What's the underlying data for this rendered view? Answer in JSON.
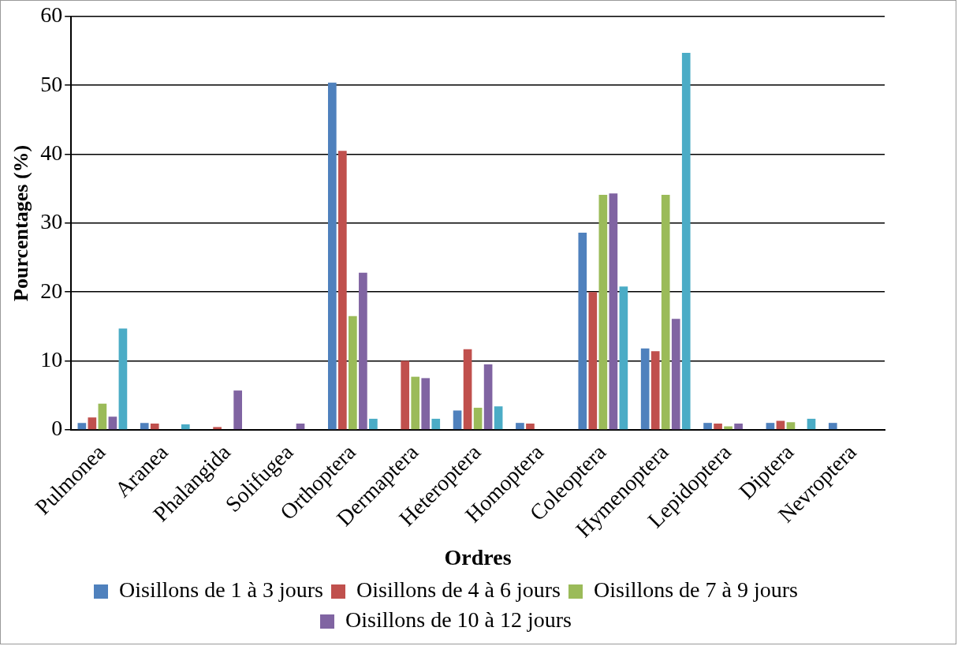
{
  "chart_data": {
    "type": "bar",
    "xlabel": "Ordres",
    "ylabel": "Pourcentages (%)",
    "categories": [
      "Pulmonea",
      "Aranea",
      "Phalangida",
      "Solifugea",
      "Orthoptera",
      "Dermaptera",
      "Heteroptera",
      "Homoptera",
      "Coleoptera",
      "Hymenoptera",
      "Lepidoptera",
      "Diptera",
      "Nevroptera"
    ],
    "series": [
      {
        "name": "Oisillons de 1 à 3 jours",
        "color": "#4f81bd",
        "values": [
          1.0,
          1.0,
          0,
          0,
          50.4,
          0,
          2.8,
          1.0,
          28.6,
          11.8,
          1.0,
          1.0,
          1.0
        ]
      },
      {
        "name": "Oisillons de 4 à 6 jours",
        "color": "#c0504d",
        "values": [
          1.8,
          0.9,
          0.4,
          0,
          40.5,
          10.0,
          11.7,
          0.9,
          20.0,
          11.4,
          0.9,
          1.3,
          0
        ]
      },
      {
        "name": "Oisillons de 7 à 9 jours",
        "color": "#9bbb59",
        "values": [
          3.8,
          0,
          0,
          0,
          16.5,
          7.7,
          3.2,
          0,
          34.1,
          34.1,
          0.5,
          1.1,
          0
        ]
      },
      {
        "name": "Oisillons de 10 à 12 jours",
        "color": "#8064a2",
        "values": [
          1.9,
          0,
          5.7,
          0.9,
          22.8,
          7.5,
          9.5,
          0,
          34.3,
          16.1,
          0.9,
          0,
          0
        ]
      },
      {
        "color": "#4bacc6",
        "values": [
          14.7,
          0.8,
          0,
          0,
          1.6,
          1.6,
          3.4,
          0,
          20.8,
          54.7,
          0,
          1.6,
          0
        ]
      }
    ],
    "ylim": [
      0,
      60
    ],
    "yticks": [
      0,
      10,
      20,
      30,
      40,
      50,
      60
    ],
    "grid": "y",
    "legend": "bottom"
  }
}
